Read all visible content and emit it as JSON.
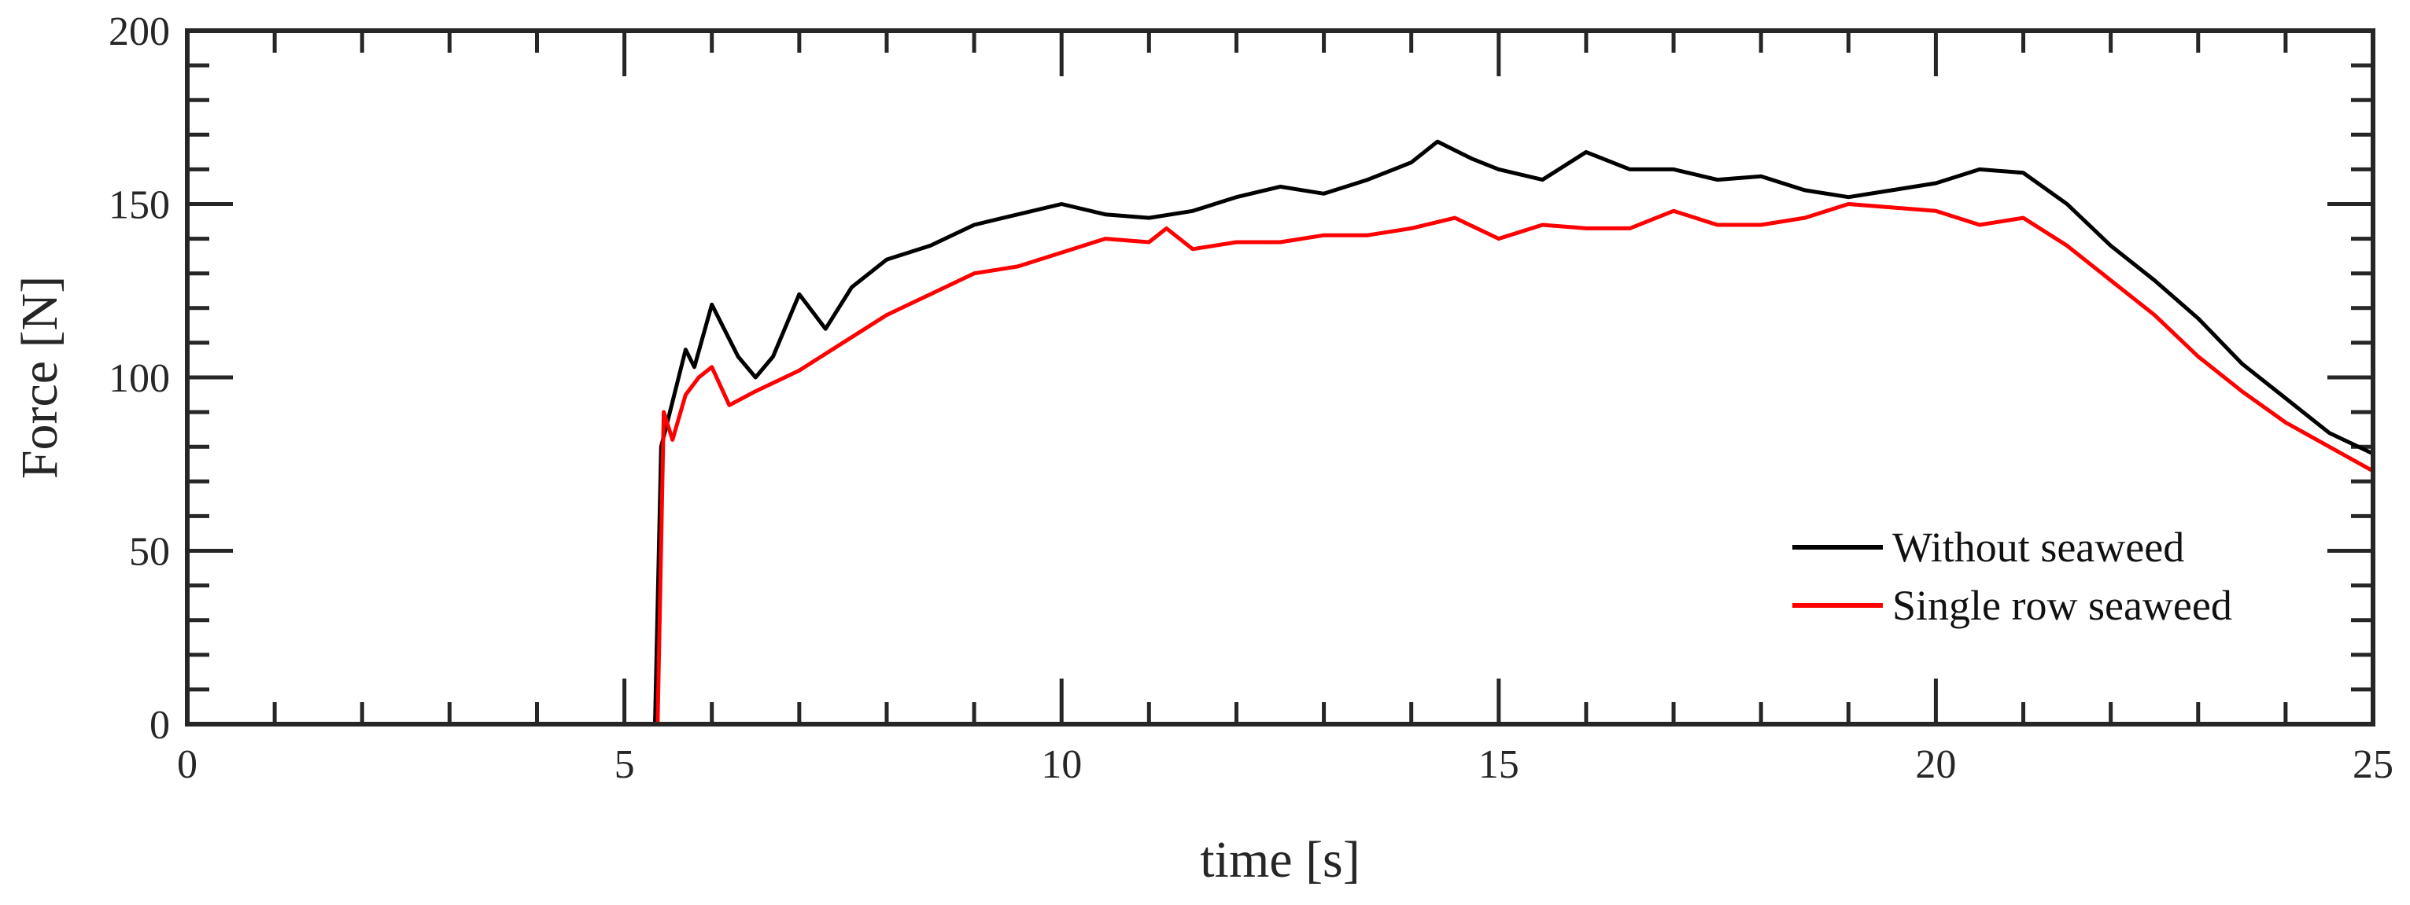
{
  "chart_data": {
    "type": "line",
    "xlabel": "time [s]",
    "ylabel": "Force [N]",
    "xlim": [
      0,
      25
    ],
    "ylim": [
      0,
      200
    ],
    "xticks": [
      0,
      5,
      10,
      15,
      20,
      25
    ],
    "yticks": [
      0,
      50,
      100,
      150,
      200
    ],
    "xtick_labels": [
      "0",
      "5",
      "10",
      "15",
      "20",
      "25"
    ],
    "ytick_labels": [
      "0",
      "50",
      "100",
      "150",
      "200"
    ],
    "grid": false,
    "legend_position": "bottom-right",
    "series": [
      {
        "name": "Without seaweed",
        "color": "#000000",
        "x": [
          0,
          1,
          2,
          3,
          4,
          5,
          5.35,
          5.42,
          5.5,
          5.6,
          5.7,
          5.8,
          5.9,
          6.0,
          6.1,
          6.3,
          6.5,
          6.7,
          7.0,
          7.3,
          7.6,
          8.0,
          8.5,
          9.0,
          9.5,
          10.0,
          10.5,
          11.0,
          11.5,
          12.0,
          12.5,
          13.0,
          13.5,
          14.0,
          14.3,
          14.7,
          15.0,
          15.5,
          16.0,
          16.5,
          17.0,
          17.5,
          18.0,
          18.5,
          19.0,
          19.5,
          20.0,
          20.5,
          21.0,
          21.5,
          22.0,
          22.5,
          23.0,
          23.5,
          24.0,
          24.5,
          25.0
        ],
        "y": [
          0,
          0,
          0,
          0,
          0,
          0,
          0,
          80,
          88,
          98,
          108,
          103,
          112,
          121,
          116,
          106,
          100,
          106,
          124,
          114,
          126,
          134,
          138,
          144,
          147,
          150,
          147,
          146,
          148,
          152,
          155,
          153,
          157,
          162,
          168,
          163,
          160,
          157,
          165,
          160,
          160,
          157,
          158,
          154,
          152,
          154,
          156,
          160,
          159,
          150,
          138,
          128,
          117,
          104,
          94,
          84,
          78
        ]
      },
      {
        "name": "Single row seaweed",
        "color": "#ff0000",
        "x": [
          0,
          1,
          2,
          3,
          4,
          5,
          5.38,
          5.45,
          5.55,
          5.7,
          5.85,
          6.0,
          6.2,
          6.5,
          7.0,
          7.5,
          8.0,
          8.5,
          9.0,
          9.5,
          10.0,
          10.5,
          11.0,
          11.2,
          11.5,
          12.0,
          12.5,
          13.0,
          13.5,
          14.0,
          14.5,
          15.0,
          15.5,
          16.0,
          16.5,
          17.0,
          17.5,
          18.0,
          18.5,
          19.0,
          19.5,
          20.0,
          20.5,
          21.0,
          21.5,
          22.0,
          22.5,
          23.0,
          23.5,
          24.0,
          24.5,
          25.0
        ],
        "y": [
          0,
          0,
          0,
          0,
          0,
          0,
          0,
          90,
          82,
          95,
          100,
          103,
          92,
          96,
          102,
          110,
          118,
          124,
          130,
          132,
          136,
          140,
          139,
          143,
          137,
          139,
          139,
          141,
          141,
          143,
          146,
          140,
          144,
          143,
          143,
          148,
          144,
          144,
          146,
          150,
          149,
          148,
          144,
          146,
          138,
          128,
          118,
          106,
          96,
          87,
          80,
          73
        ]
      }
    ]
  }
}
